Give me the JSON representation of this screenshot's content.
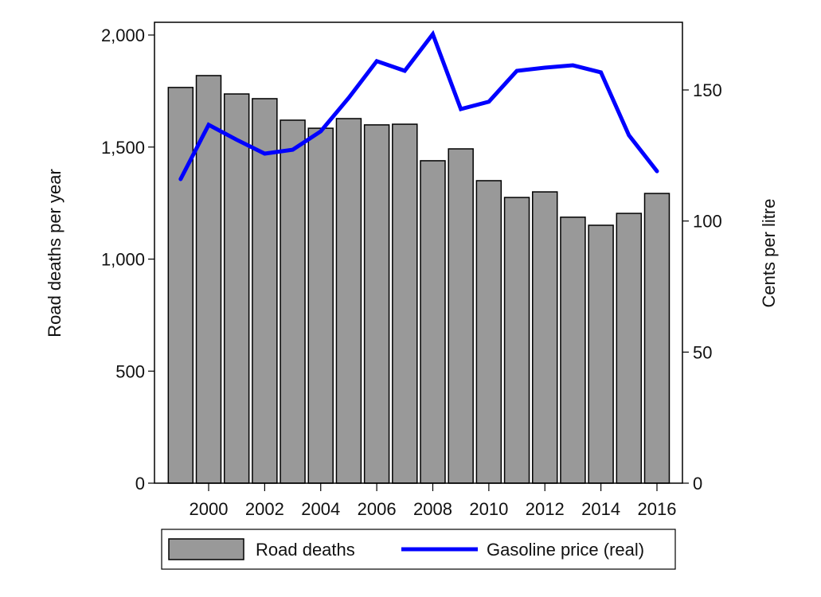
{
  "chart_data": {
    "type": "bar",
    "title": "",
    "xlabel": "",
    "ylabel": "Road deaths per year",
    "y2label": "Cents per litre",
    "x": [
      1999,
      2000,
      2001,
      2002,
      2003,
      2004,
      2005,
      2006,
      2007,
      2008,
      2009,
      2010,
      2011,
      2012,
      2013,
      2014,
      2015,
      2016
    ],
    "x_ticks": [
      "2000",
      "2002",
      "2004",
      "2006",
      "2008",
      "2010",
      "2012",
      "2014",
      "2016"
    ],
    "x_tick_values": [
      2000,
      2002,
      2004,
      2006,
      2008,
      2010,
      2012,
      2014,
      2016
    ],
    "ylim": [
      0,
      2000
    ],
    "y_ticks": [
      "0",
      "500",
      "1,000",
      "1,500",
      "2,000"
    ],
    "y_tick_values": [
      0,
      500,
      1000,
      1500,
      2000
    ],
    "y2lim": [
      0,
      175
    ],
    "y2_ticks": [
      "0",
      "50",
      "100",
      "150"
    ],
    "y2_tick_values": [
      0,
      50,
      100,
      150
    ],
    "grid": false,
    "legend_position": "bottom",
    "series": [
      {
        "name": "Road deaths",
        "type": "bar",
        "axis": "left",
        "color": "#999999",
        "values": [
          1766,
          1819,
          1737,
          1716,
          1620,
          1584,
          1627,
          1599,
          1602,
          1439,
          1492,
          1350,
          1275,
          1300,
          1187,
          1151,
          1204,
          1293
        ]
      },
      {
        "name": "Gasoline price (real)",
        "type": "line",
        "axis": "right",
        "color": "#0000ff",
        "values": [
          116,
          136.7,
          131,
          125.7,
          127.2,
          134.2,
          147,
          161,
          157.3,
          171.3,
          142.7,
          145.5,
          157.3,
          158.5,
          159.4,
          156.7,
          132.7,
          119
        ]
      }
    ]
  },
  "legend": {
    "items": [
      {
        "label": "Road deaths",
        "symbol": "bar-swatch"
      },
      {
        "label": "Gasoline price (real)",
        "symbol": "line-swatch"
      }
    ]
  }
}
